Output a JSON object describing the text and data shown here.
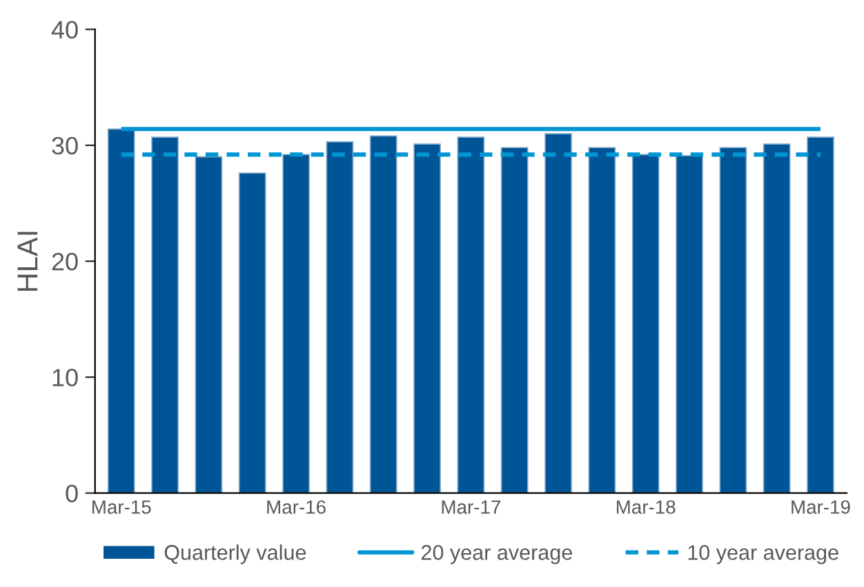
{
  "chart_data": {
    "type": "bar",
    "ylabel": "HLAI",
    "categories": [
      "Mar-15",
      null,
      null,
      null,
      "Mar-16",
      null,
      null,
      null,
      "Mar-17",
      null,
      null,
      null,
      "Mar-18",
      null,
      null,
      null,
      "Mar-19"
    ],
    "series": [
      {
        "name": "Quarterly value",
        "color": "#005596",
        "values": [
          31.4,
          30.7,
          29.0,
          27.6,
          29.2,
          30.3,
          30.8,
          30.1,
          30.7,
          29.8,
          31.0,
          29.8,
          29.2,
          29.1,
          29.8,
          30.1,
          30.7
        ]
      }
    ],
    "ref_lines": [
      {
        "axis": "y",
        "value": 31.4,
        "label": "20 year average",
        "color": "#0095d3",
        "line_style": "solid"
      },
      {
        "axis": "y",
        "value": 29.2,
        "label": "10 year average",
        "color": "#0095d3",
        "line_style": "dashed"
      }
    ],
    "ylim": [
      0,
      40
    ],
    "yticks": [
      0,
      10,
      20,
      30,
      40
    ],
    "grid": false,
    "legend": "bottom"
  }
}
